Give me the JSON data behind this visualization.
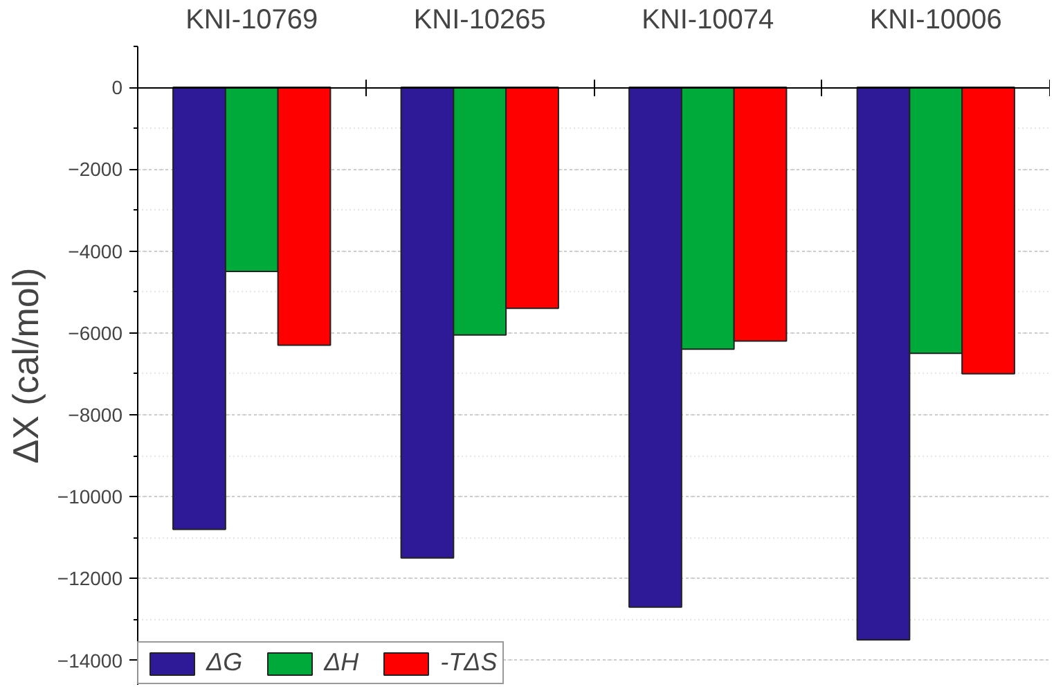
{
  "chart_data": {
    "type": "bar",
    "categories": [
      "KNI-10769",
      "KNI-10265",
      "KNI-10074",
      "KNI-10006"
    ],
    "ylabel": "ΔX (cal/mol)",
    "series": [
      {
        "name": "ΔG",
        "color": "#2e1a96",
        "values": [
          -10800,
          -11500,
          -12700,
          -13500
        ]
      },
      {
        "name": "ΔH",
        "color": "#00aa3a",
        "values": [
          -4500,
          -6050,
          -6400,
          -6500
        ]
      },
      {
        "name": "-TΔS",
        "color": "#ff0000",
        "values": [
          -6300,
          -5400,
          -6200,
          -7000
        ]
      }
    ],
    "ylim": [
      -14600,
      1000
    ],
    "yticks": [
      -14000,
      -12000,
      -10000,
      -8000,
      -6000,
      -4000,
      -2000,
      0
    ],
    "grid": "y",
    "legend": "bottom left"
  }
}
